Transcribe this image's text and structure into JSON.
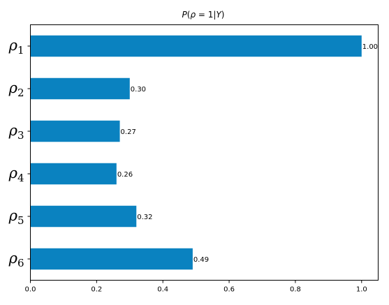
{
  "chart_data": {
    "type": "bar",
    "orientation": "horizontal",
    "title": "P(ρ = 1|Y)",
    "title_parts": {
      "p": "P",
      "paren_open": "(",
      "rho": "ρ",
      "eq": " = 1|",
      "y": "Y",
      "paren_close": ")"
    },
    "categories": [
      {
        "symbol": "ρ",
        "sub": "1"
      },
      {
        "symbol": "ρ",
        "sub": "2"
      },
      {
        "symbol": "ρ",
        "sub": "3"
      },
      {
        "symbol": "ρ",
        "sub": "4"
      },
      {
        "symbol": "ρ",
        "sub": "5"
      },
      {
        "symbol": "ρ",
        "sub": "6"
      }
    ],
    "values": [
      1.0,
      0.3,
      0.27,
      0.26,
      0.32,
      0.49
    ],
    "value_labels": [
      "1.00",
      "0.30",
      "0.27",
      "0.26",
      "0.32",
      "0.49"
    ],
    "xlim": [
      0,
      1.05
    ],
    "xticks": [
      0.0,
      0.2,
      0.4,
      0.6,
      0.8,
      1.0
    ],
    "xtick_labels": [
      "0.0",
      "0.2",
      "0.4",
      "0.6",
      "0.8",
      "1.0"
    ],
    "grid": false,
    "bar_color": "#0a82c0"
  }
}
